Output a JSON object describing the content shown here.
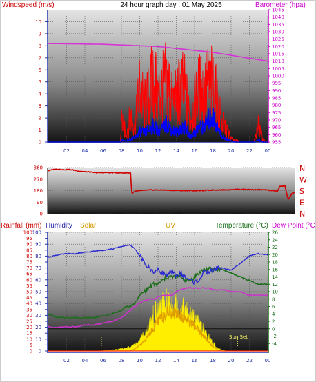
{
  "header": {
    "windspeed_label": "Windspeed (m/s)",
    "title": "24 hour graph day : 01 May 2025",
    "barometer_label": "Barometer (hpa)"
  },
  "colors": {
    "windspeed": "#ff0000",
    "wind_gust": "#0000ff",
    "barometer": "#d633d6",
    "direction": "#d00000",
    "rainfall": "#ff0000",
    "humidity": "#2a2ad0",
    "solar": "#e0a000",
    "uv": "#ffee00",
    "temperature": "#1a6e1a",
    "dewpoint": "#cc33cc",
    "sunset": "#ffff66"
  },
  "time_axis": {
    "labels": [
      "02",
      "04",
      "06",
      "08",
      "10",
      "12",
      "14",
      "16",
      "18",
      "20",
      "22",
      "00"
    ]
  },
  "chart_data": [
    {
      "type": "area",
      "name": "wind",
      "x_hours": [
        0,
        7.9,
        8,
        8.5,
        9,
        9.5,
        10,
        10.5,
        11,
        11.5,
        12,
        12.5,
        13,
        13.5,
        14,
        14.5,
        15,
        15.5,
        16,
        16.5,
        17,
        17.5,
        18,
        18.5,
        19,
        19.5,
        20,
        20.5,
        21,
        22.5,
        23,
        23.5,
        24
      ],
      "series": [
        {
          "name": "Windspeed",
          "values": [
            0,
            0,
            2.6,
            1.0,
            3.0,
            2.0,
            6.3,
            4.2,
            5.3,
            7.5,
            5.4,
            6.1,
            7.2,
            4.8,
            4.9,
            6.5,
            5.8,
            2.6,
            4.5,
            6.2,
            5.7,
            6.9,
            6.5,
            4.6,
            2.2,
            1.6,
            0.4,
            0.2,
            0,
            0,
            2.0,
            0.3,
            0
          ]
        },
        {
          "name": "Gust",
          "values": [
            0,
            0,
            0.2,
            0.1,
            0.3,
            0.4,
            1.0,
            0.9,
            1.2,
            1.6,
            1.1,
            1.3,
            1.8,
            1.2,
            1.0,
            1.3,
            1.4,
            0.5,
            0.9,
            1.5,
            1.4,
            2.2,
            2.5,
            1.4,
            0.5,
            0.3,
            0.1,
            0,
            0,
            0,
            0.2,
            0,
            0
          ]
        }
      ],
      "barometer": {
        "x_hours": [
          0,
          6,
          12,
          18,
          24
        ],
        "values": [
          1022,
          1021.5,
          1020,
          1016,
          1010
        ]
      },
      "ylim": [
        0,
        11
      ],
      "y2lim": [
        955,
        1045
      ],
      "yticks": [
        0,
        1,
        2,
        3,
        4,
        5,
        6,
        7,
        8,
        9,
        10
      ],
      "y2ticks": [
        955,
        960,
        965,
        970,
        975,
        980,
        985,
        990,
        995,
        1000,
        1005,
        1010,
        1015,
        1020,
        1025,
        1030,
        1035,
        1040,
        1045
      ]
    },
    {
      "type": "line",
      "name": "wind_direction",
      "x_hours": [
        0,
        0.5,
        1,
        1.5,
        2,
        2.5,
        3,
        3.5,
        4,
        4.5,
        5,
        5.5,
        6,
        6.5,
        7,
        7.5,
        8,
        8.1,
        8.5,
        9,
        10,
        11,
        12,
        13,
        14,
        15,
        16,
        17,
        18,
        19,
        20,
        21,
        22,
        22.3,
        22.5,
        23,
        23.3,
        23.7,
        24
      ],
      "series": [
        {
          "name": "Direction",
          "values": [
            335,
            345,
            348,
            343,
            345,
            340,
            332,
            328,
            325,
            320,
            320,
            320,
            320,
            320,
            318,
            318,
            318,
            160,
            175,
            180,
            185,
            185,
            182,
            180,
            180,
            180,
            185,
            185,
            190,
            190,
            188,
            185,
            180,
            175,
            215,
            215,
            110,
            160,
            165
          ]
        }
      ],
      "ylim": [
        0,
        360
      ],
      "yticks": [
        0,
        90,
        180,
        270,
        360
      ],
      "direction_labels": [
        "N",
        "W",
        "S",
        "E",
        "N"
      ]
    },
    {
      "type": "area",
      "name": "rain_humidity_solar_uv_temp",
      "header": {
        "rainfall_label": "Rainfall (mm)",
        "humidity_label": "Humidity",
        "solar_label": "Solar",
        "uv_label": "UV",
        "temperature_label": "Temperature (°C)",
        "dewpoint_label": "Dew Point (°C"
      },
      "x_hours": [
        0,
        1,
        2,
        3,
        4,
        5,
        6,
        7,
        8,
        8.5,
        9,
        9.5,
        10,
        10.5,
        11,
        11.5,
        12,
        12.5,
        13,
        13.5,
        14,
        14.5,
        15,
        15.5,
        16,
        16.5,
        17,
        17.5,
        18,
        18.5,
        19,
        19.5,
        20,
        21,
        22,
        23,
        24
      ],
      "humidity": [
        79,
        81,
        82,
        82,
        83,
        84,
        85,
        86,
        88,
        89,
        89,
        86,
        80,
        74,
        70,
        67,
        68,
        66,
        64,
        66,
        64,
        65,
        62,
        60,
        58,
        60,
        66,
        67,
        68,
        70,
        70,
        69,
        68,
        74,
        80,
        82,
        81
      ],
      "temperature": [
        4,
        3,
        3,
        3,
        3,
        3,
        3.5,
        4,
        5,
        6,
        6,
        7,
        9,
        10,
        11,
        12,
        12,
        13,
        14,
        14,
        14,
        14,
        13,
        13,
        14,
        15,
        16,
        16,
        16,
        16,
        16,
        15.5,
        15,
        14,
        13,
        12,
        12
      ],
      "dewpoint": [
        0.5,
        0.3,
        0.5,
        0.5,
        1,
        1,
        1.5,
        2,
        3,
        4,
        5,
        6,
        7,
        7.5,
        8,
        8,
        8.5,
        9,
        9,
        9,
        10,
        10.5,
        11,
        11,
        11,
        11,
        11,
        11,
        10.5,
        10.5,
        10.5,
        10.5,
        10,
        10,
        9,
        9,
        9
      ],
      "solar": [
        0,
        0,
        0,
        0,
        0,
        0,
        0,
        0,
        0,
        0,
        0,
        2,
        5,
        8,
        14,
        20,
        26,
        30,
        34,
        34,
        33,
        31,
        28,
        25,
        22,
        17,
        13,
        8,
        4,
        1,
        0,
        0,
        0,
        0,
        0,
        0,
        0
      ],
      "uv": [
        0,
        0,
        0,
        0,
        0,
        0,
        0.3,
        1,
        2,
        3,
        4,
        6,
        10,
        16,
        26,
        34,
        40,
        44,
        46,
        46,
        44,
        42,
        38,
        35,
        30,
        26,
        20,
        14,
        8,
        3,
        1,
        0,
        0,
        0,
        0,
        0,
        0
      ],
      "rainfall_total": 0,
      "ylim": [
        0,
        100
      ],
      "y2lim": [
        -6,
        26
      ],
      "yticks": [
        0,
        5,
        10,
        15,
        20,
        25,
        30,
        35,
        40,
        45,
        50,
        55,
        60,
        65,
        70,
        75,
        80,
        85,
        90,
        95,
        100
      ],
      "y2ticks": [
        -4,
        -2,
        0,
        2,
        4,
        6,
        8,
        10,
        12,
        14,
        16,
        18,
        20,
        22,
        24,
        26
      ],
      "sunrise_hour": 5.8,
      "sunset_hour": 20.7,
      "sunset_label": "Sun Set"
    }
  ]
}
